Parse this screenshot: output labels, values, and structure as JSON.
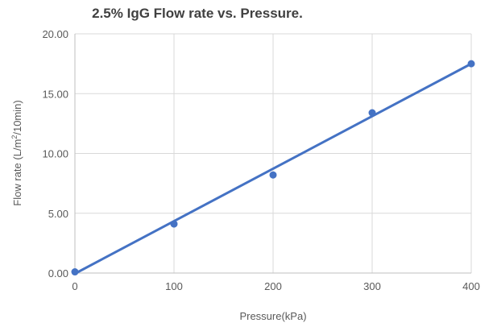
{
  "chart_data": {
    "type": "scatter",
    "title": "2.5% IgG  Flow rate vs. Pressure.",
    "xlabel": "Pressure(kPa)",
    "ylabel_parts": {
      "before": "Flow rate (L/m",
      "sup": "2",
      "after": "/10min)"
    },
    "xlim": [
      0,
      400
    ],
    "ylim": [
      0,
      20
    ],
    "x_ticks": [
      "0",
      "100",
      "200",
      "300",
      "400"
    ],
    "y_ticks": [
      "0.00",
      "5.00",
      "10.00",
      "15.00",
      "20.00"
    ],
    "grid": true,
    "legend": "none",
    "series": [
      {
        "marker_color": "#4472c4",
        "x": [
          0,
          100,
          200,
          300,
          400
        ],
        "y": [
          0.1,
          4.1,
          8.2,
          13.4,
          17.5
        ]
      }
    ],
    "trendline": {
      "type": "linear",
      "color": "#4472c4",
      "x": [
        0,
        400
      ],
      "y": [
        -0.05,
        17.5
      ]
    }
  }
}
